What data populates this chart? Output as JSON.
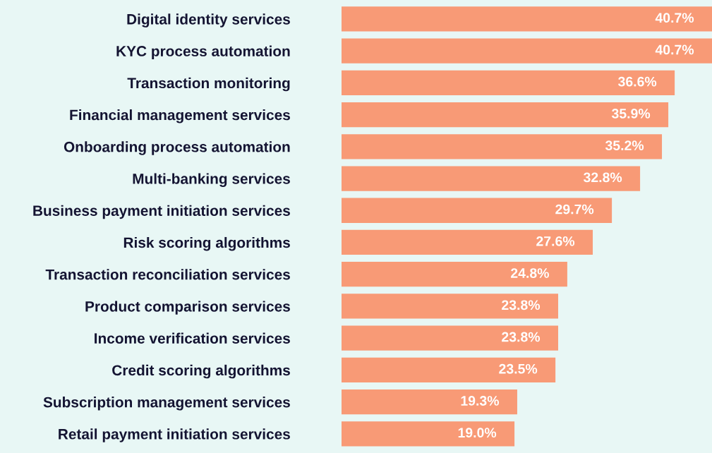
{
  "chart_data": {
    "type": "bar",
    "orientation": "horizontal",
    "categories": [
      "Digital identity services",
      "KYC process automation",
      "Transaction monitoring",
      "Financial management services",
      "Onboarding process automation",
      "Multi-banking services",
      "Business payment initiation services",
      "Risk scoring algorithms",
      "Transaction reconciliation services",
      "Product comparison services",
      "Income verification services",
      "Credit scoring algorithms",
      "Subscription management services",
      "Retail payment initiation services"
    ],
    "values": [
      40.7,
      40.7,
      36.6,
      35.9,
      35.2,
      32.8,
      29.7,
      27.6,
      24.8,
      23.8,
      23.8,
      23.5,
      19.3,
      19.0
    ],
    "value_labels": [
      "40.7%",
      "40.7%",
      "36.6%",
      "35.9%",
      "35.2%",
      "32.8%",
      "29.7%",
      "27.6%",
      "24.8%",
      "23.8%",
      "23.8%",
      "23.5%",
      "19.3%",
      "19.0%"
    ],
    "color": "#f89a76",
    "grid": false,
    "legend": false
  }
}
